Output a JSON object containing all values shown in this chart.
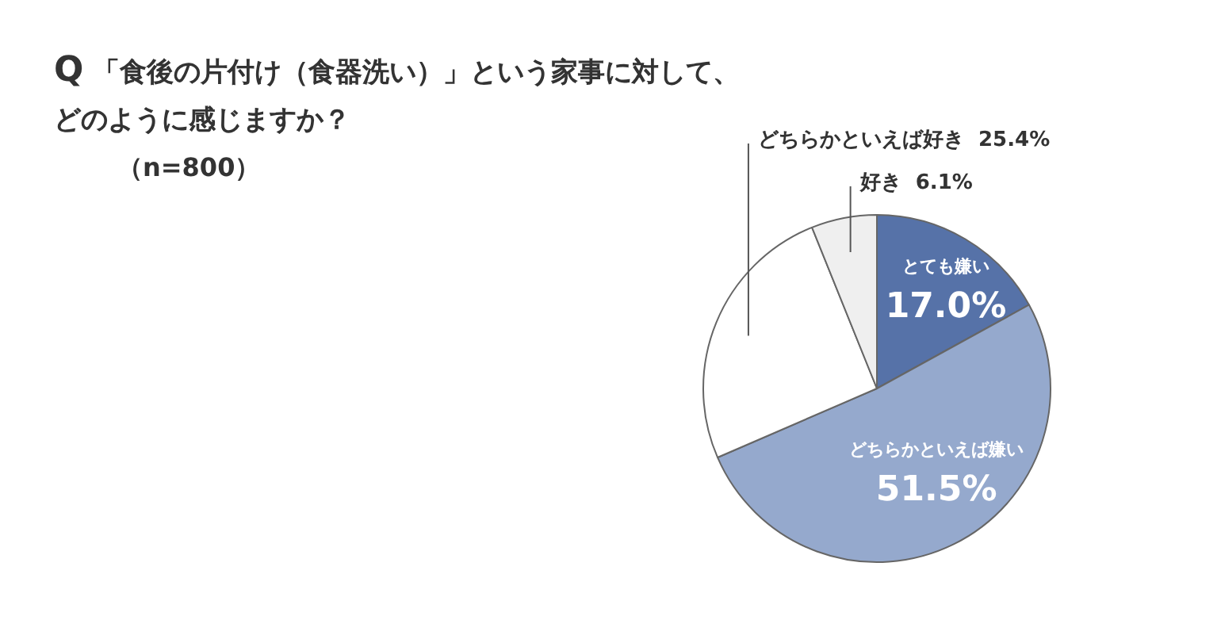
{
  "chart_data": {
    "type": "pie",
    "title": "Q「食後の片付け（食器洗い）」という家事に対して、どのように感じますか？",
    "subtitle": "（n=800）",
    "categories": [
      "とても嫌い",
      "どちらかといえば嫌い",
      "どちらかといえば好き",
      "好き"
    ],
    "values": [
      17.0,
      51.5,
      25.4,
      6.1
    ],
    "value_labels": [
      "17.0%",
      "51.5%",
      "25.4%",
      "6.1%"
    ],
    "colors": [
      "#5672a8",
      "#95a9cd",
      "#ffffff",
      "#efefef"
    ],
    "legend": false
  }
}
